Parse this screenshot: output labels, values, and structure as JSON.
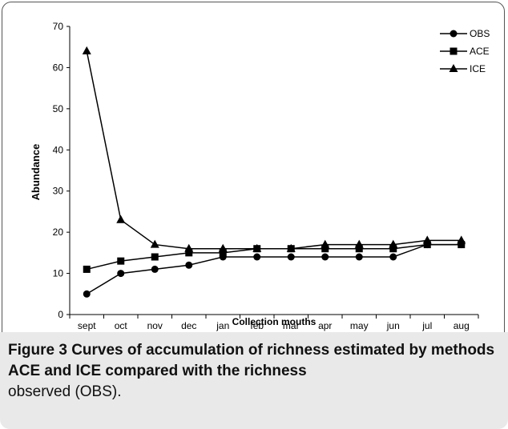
{
  "chart_data": {
    "type": "line",
    "xlabel": "Collection mouths",
    "ylabel": "Abundance",
    "categories": [
      "sept",
      "oct",
      "nov",
      "dec",
      "jan",
      "feb",
      "mar",
      "apr",
      "may",
      "jun",
      "jul",
      "aug"
    ],
    "ylim": [
      0,
      70
    ],
    "yticks": [
      0,
      10,
      20,
      30,
      40,
      50,
      60,
      70
    ],
    "grid": false,
    "legend_position": "top-right",
    "series": [
      {
        "name": "OBS",
        "marker": "circle",
        "values": [
          5,
          10,
          11,
          12,
          14,
          14,
          14,
          14,
          14,
          14,
          17,
          17
        ]
      },
      {
        "name": "ACE",
        "marker": "square",
        "values": [
          11,
          13,
          14,
          15,
          15,
          16,
          16,
          16,
          16,
          16,
          17,
          17
        ]
      },
      {
        "name": "ICE",
        "marker": "triangle",
        "values": [
          64,
          23,
          17,
          16,
          16,
          16,
          16,
          17,
          17,
          17,
          18,
          18
        ]
      }
    ]
  },
  "caption": {
    "label": "Figure 3",
    "title": "Curves of accumulation of richness estimated by methods ACE and ICE compared with the richness",
    "rest": "observed (OBS)."
  }
}
